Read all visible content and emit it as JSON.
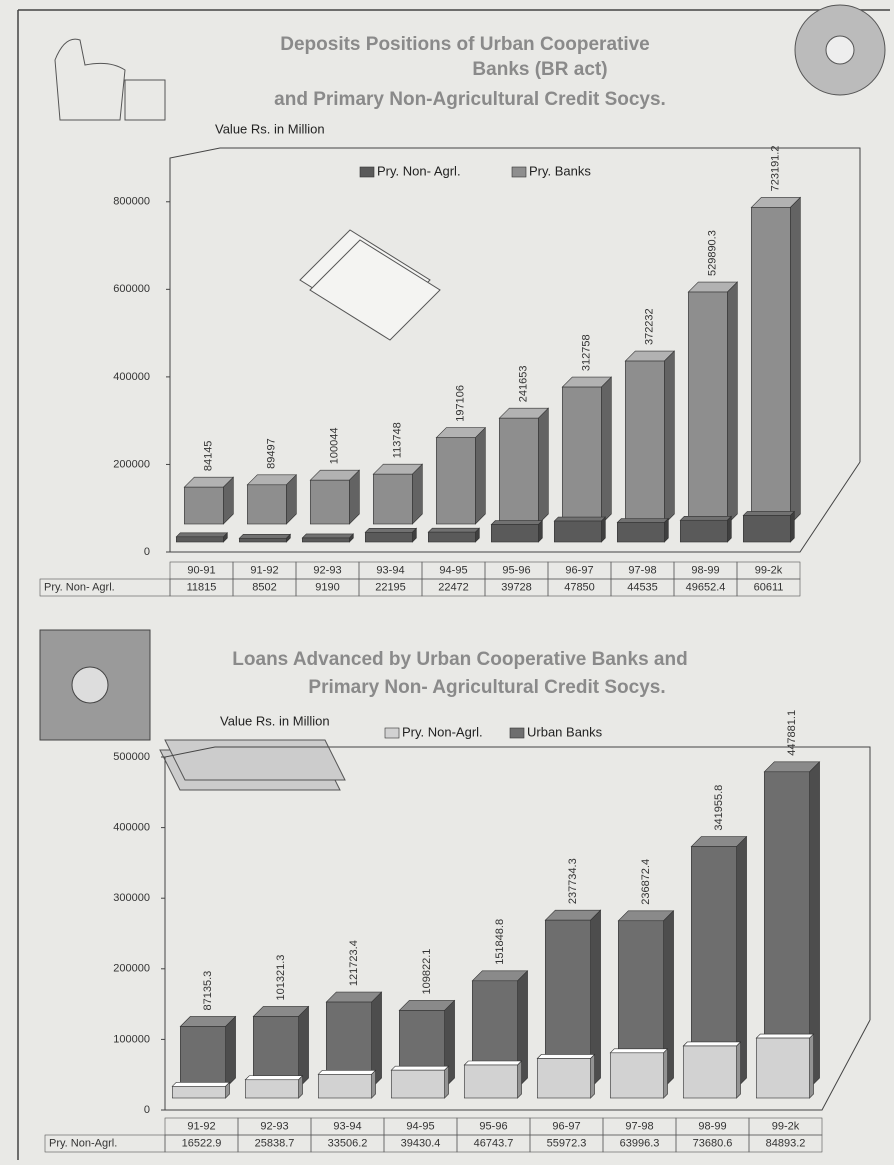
{
  "chart_data": [
    {
      "type": "bar3d",
      "title": [
        "Deposits Positions of Urban Cooperative",
        "Banks (BR act)",
        "and  Primary Non-Agricultural Credit Socys."
      ],
      "subtitle": "Value Rs. in Million",
      "categories": [
        "90-91",
        "91-92",
        "92-93",
        "93-94",
        "94-95",
        "95-96",
        "96-97",
        "97-98",
        "98-99",
        "99-2k"
      ],
      "series": [
        {
          "name": "Pry. Non- Agrl.",
          "color": "#5a5a5a",
          "values": [
            11815,
            8502,
            9190,
            22195,
            22472,
            39728,
            47850,
            44535,
            49652.4,
            60611
          ]
        },
        {
          "name": "Pry. Banks",
          "color": "#8e8e8e",
          "values": [
            84145,
            89497,
            100044,
            113748,
            197106,
            241653,
            312758,
            372232,
            529890.3,
            723191.2
          ]
        }
      ],
      "ylim": [
        0,
        900000
      ],
      "yticks": [
        0,
        200000,
        400000,
        600000,
        800000
      ]
    },
    {
      "type": "bar3d",
      "title": [
        "Loans Advanced by Urban Cooperative Banks and",
        "Primary Non- Agricultural Credit Socys."
      ],
      "subtitle": "Value Rs. in Million",
      "categories": [
        "91-92",
        "92-93",
        "93-94",
        "94-95",
        "95-96",
        "96-97",
        "97-98",
        "98-99",
        "99-2k"
      ],
      "series": [
        {
          "name": "Pry. Non-Agrl.",
          "color": "#d2d2d2",
          "values": [
            16522.9,
            25838.7,
            33506.2,
            39430.4,
            46743.7,
            55972.3,
            63996.3,
            73680.6,
            84893.2
          ]
        },
        {
          "name": "Urban Banks",
          "color": "#6e6e6e",
          "values": [
            87135.3,
            101321.3,
            121723.4,
            109822.1,
            151848.8,
            237734.3,
            236872.4,
            341955.8,
            447881.1
          ]
        }
      ],
      "ylim": [
        0,
        500000
      ],
      "yticks": [
        0,
        100000,
        200000,
        300000,
        400000,
        500000
      ]
    }
  ]
}
